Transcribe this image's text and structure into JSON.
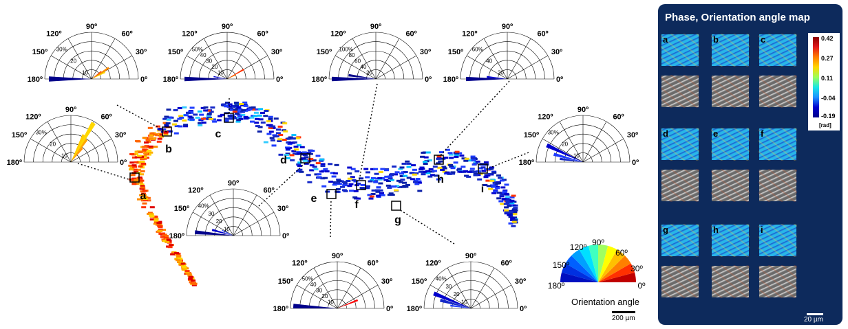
{
  "main": {
    "sample_labels": [
      "a",
      "b",
      "c",
      "d",
      "e",
      "f",
      "g",
      "h",
      "i"
    ],
    "polar_plots": [
      {
        "id": "b",
        "angle_labels": [
          "90º",
          "120º",
          "60º",
          "150º",
          "30º",
          "180º",
          "0º"
        ],
        "radial_labels": [
          "30%",
          "20",
          "10"
        ]
      },
      {
        "id": "c",
        "angle_labels": [
          "90º",
          "120º",
          "60º",
          "150º",
          "30º",
          "180º",
          "0º"
        ],
        "radial_labels": [
          "50%",
          "40",
          "30",
          "20",
          "10"
        ]
      },
      {
        "id": "f",
        "angle_labels": [
          "90º",
          "120º",
          "60º",
          "150º",
          "30º",
          "180º",
          "0º"
        ],
        "radial_labels": [
          "100%",
          "80",
          "60",
          "40",
          "20"
        ]
      },
      {
        "id": "h",
        "angle_labels": [
          "90º",
          "120º",
          "60º",
          "150º",
          "30º",
          "180º",
          "0º"
        ],
        "radial_labels": [
          "60%",
          "40",
          "20"
        ]
      },
      {
        "id": "a",
        "angle_labels": [
          "90º",
          "120º",
          "60º",
          "150º",
          "30º",
          "180º",
          "0º"
        ],
        "radial_labels": [
          "30%",
          "20",
          "10"
        ]
      },
      {
        "id": "i",
        "angle_labels": [
          "90º",
          "120º",
          "60º",
          "150º",
          "30º",
          "180º",
          "0º"
        ],
        "radial_labels": [
          "30%",
          "20",
          "10"
        ]
      },
      {
        "id": "d",
        "angle_labels": [
          "90º",
          "120º",
          "60º",
          "150º",
          "30º",
          "180º",
          "0º"
        ],
        "radial_labels": [
          "40%",
          "30",
          "20",
          "10"
        ]
      },
      {
        "id": "e",
        "angle_labels": [
          "90º",
          "120º",
          "60º",
          "150º",
          "30º",
          "180º",
          "0º"
        ],
        "radial_labels": [
          "50%",
          "40",
          "30",
          "20",
          "10"
        ]
      },
      {
        "id": "g",
        "angle_labels": [
          "90º",
          "120º",
          "60º",
          "150º",
          "30º",
          "180º",
          "0º"
        ],
        "radial_labels": [
          "40%",
          "30",
          "20",
          "10"
        ]
      }
    ],
    "orientation_wheel": {
      "tick_labels": [
        "120º",
        "90º",
        "60º",
        "150º",
        "30º",
        "180º",
        "0º"
      ],
      "caption": "Orientation angle"
    },
    "scale_bar": "200 µm"
  },
  "panel": {
    "title": "Phase, Orientation angle map",
    "tile_labels": [
      "a",
      "b",
      "c",
      "d",
      "e",
      "f",
      "g",
      "h",
      "i"
    ],
    "colorbar_ticks": [
      "0.42",
      "0.27",
      "0.11",
      "-0.04",
      "-0.19"
    ],
    "colorbar_unit": "[rad]",
    "scale_bar": "20 µm",
    "colors": {
      "background": "#0d2a5c",
      "phase": "#29b6e8",
      "overlay": "#6b6b6b"
    }
  }
}
